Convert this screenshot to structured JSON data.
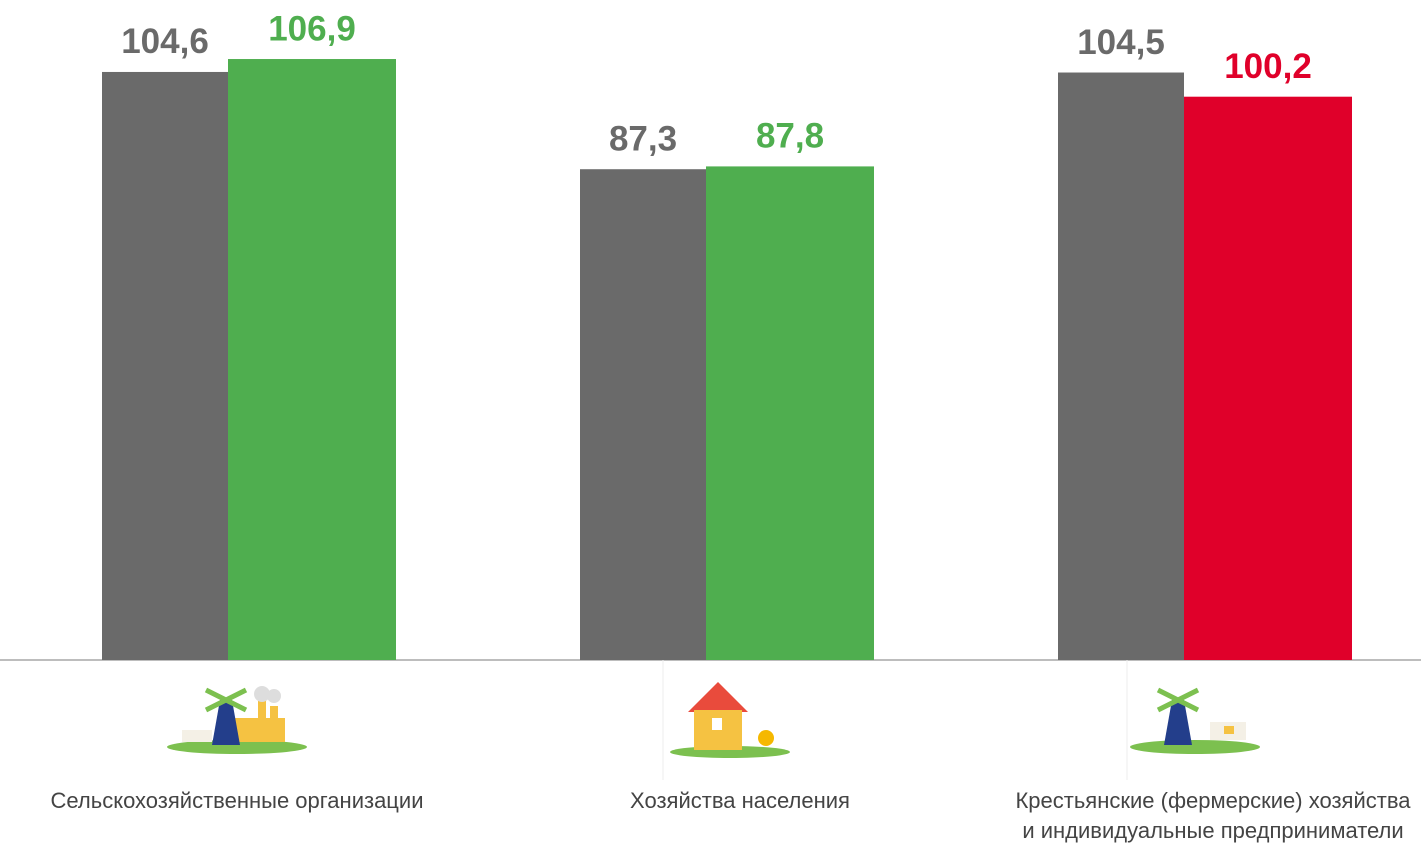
{
  "chart_data": {
    "type": "bar",
    "categories": [
      "Сельскохозяйственные организации",
      "Хозяйства населения",
      "Крестьянские (фермерские) хозяйства\nи индивидуальные предприниматели"
    ],
    "series": [
      {
        "color": "#6a6a6a",
        "values": [
          104.6,
          87.3,
          104.5
        ],
        "value_labels": [
          "104,6",
          "87,3",
          "104,5"
        ]
      },
      {
        "colors": [
          "#4fae4f",
          "#4fae4f",
          "#e0002a"
        ],
        "values": [
          106.9,
          87.8,
          100.2
        ],
        "value_labels": [
          "106,9",
          "87,8",
          "100,2"
        ]
      }
    ],
    "ylim": [
      0,
      117.4
    ]
  }
}
